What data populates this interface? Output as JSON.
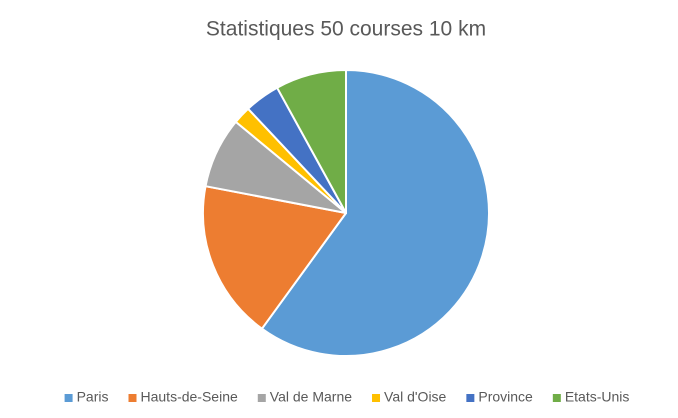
{
  "chart_data": {
    "type": "pie",
    "title": "Statistiques 50 courses 10 km",
    "categories": [
      "Paris",
      "Hauts-de-Seine",
      "Val de Marne",
      "Val d'Oise",
      "Province",
      "Etats-Unis"
    ],
    "values": [
      30,
      9,
      4,
      1,
      2,
      4
    ],
    "colors": [
      "#5b9bd5",
      "#ed7d31",
      "#a5a5a5",
      "#ffc000",
      "#4472c4",
      "#70ad47"
    ],
    "legend": "bottom"
  }
}
